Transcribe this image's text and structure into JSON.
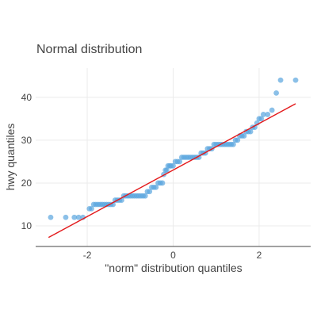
{
  "chart_data": {
    "type": "scatter",
    "title": "Normal distribution",
    "xlabel": "\"norm\" distribution quantiles",
    "ylabel": "hwy quantiles",
    "xlim": [
      -3.2,
      3.2
    ],
    "ylim": [
      5.2,
      46.8
    ],
    "x_ticks": [
      -2,
      0,
      2
    ],
    "x_tick_labels": [
      "-2",
      "0",
      "2"
    ],
    "y_ticks": [
      10,
      20,
      30,
      40
    ],
    "y_tick_labels": [
      "10",
      "20",
      "30",
      "40"
    ],
    "grid": true,
    "legend": "none",
    "colors": {
      "points": "#5aa5de",
      "line": "#e31a1c",
      "grid": "#ebebeb",
      "axis": "#444444"
    },
    "series": [
      {
        "type": "scatter",
        "points": [
          [
            -2.85,
            12
          ],
          [
            -2.5,
            12
          ],
          [
            -2.3,
            12
          ],
          [
            -2.2,
            12
          ],
          [
            -2.1,
            12
          ],
          [
            -1.95,
            14
          ],
          [
            -1.9,
            14
          ],
          [
            -1.85,
            15
          ],
          [
            -1.8,
            15
          ],
          [
            -1.75,
            15
          ],
          [
            -1.7,
            15
          ],
          [
            -1.65,
            15
          ],
          [
            -1.6,
            15
          ],
          [
            -1.55,
            15
          ],
          [
            -1.5,
            15
          ],
          [
            -1.45,
            15
          ],
          [
            -1.4,
            15
          ],
          [
            -1.35,
            16
          ],
          [
            -1.3,
            16
          ],
          [
            -1.25,
            16
          ],
          [
            -1.2,
            16
          ],
          [
            -1.15,
            17
          ],
          [
            -1.1,
            17
          ],
          [
            -1.05,
            17
          ],
          [
            -1.0,
            17
          ],
          [
            -0.95,
            17
          ],
          [
            -0.9,
            17
          ],
          [
            -0.85,
            17
          ],
          [
            -0.8,
            17
          ],
          [
            -0.75,
            17
          ],
          [
            -0.7,
            17
          ],
          [
            -0.65,
            17
          ],
          [
            -0.6,
            18
          ],
          [
            -0.55,
            18
          ],
          [
            -0.5,
            19
          ],
          [
            -0.45,
            19
          ],
          [
            -0.4,
            19
          ],
          [
            -0.35,
            20
          ],
          [
            -0.3,
            20
          ],
          [
            -0.25,
            20
          ],
          [
            -0.22,
            22
          ],
          [
            -0.18,
            23
          ],
          [
            -0.15,
            23
          ],
          [
            -0.12,
            24
          ],
          [
            -0.08,
            24
          ],
          [
            -0.05,
            24
          ],
          [
            0.0,
            24
          ],
          [
            0.05,
            25
          ],
          [
            0.1,
            25
          ],
          [
            0.15,
            25
          ],
          [
            0.2,
            26
          ],
          [
            0.25,
            26
          ],
          [
            0.3,
            26
          ],
          [
            0.35,
            26
          ],
          [
            0.4,
            26
          ],
          [
            0.45,
            26
          ],
          [
            0.5,
            26
          ],
          [
            0.55,
            26
          ],
          [
            0.6,
            26
          ],
          [
            0.65,
            27
          ],
          [
            0.7,
            27
          ],
          [
            0.75,
            27
          ],
          [
            0.8,
            28
          ],
          [
            0.85,
            28
          ],
          [
            0.9,
            28
          ],
          [
            0.95,
            29
          ],
          [
            1.0,
            29
          ],
          [
            1.05,
            29
          ],
          [
            1.1,
            29
          ],
          [
            1.15,
            29
          ],
          [
            1.2,
            29
          ],
          [
            1.25,
            29
          ],
          [
            1.3,
            29
          ],
          [
            1.35,
            29
          ],
          [
            1.4,
            29
          ],
          [
            1.45,
            30
          ],
          [
            1.5,
            30
          ],
          [
            1.55,
            31
          ],
          [
            1.6,
            31
          ],
          [
            1.65,
            31
          ],
          [
            1.7,
            32
          ],
          [
            1.75,
            32
          ],
          [
            1.8,
            32
          ],
          [
            1.85,
            33
          ],
          [
            1.9,
            33
          ],
          [
            1.95,
            34
          ],
          [
            2.0,
            35
          ],
          [
            2.05,
            35
          ],
          [
            2.1,
            36
          ],
          [
            2.2,
            36
          ],
          [
            2.3,
            37
          ],
          [
            2.4,
            41
          ],
          [
            2.5,
            44
          ],
          [
            2.85,
            44
          ]
        ]
      },
      {
        "type": "line",
        "points": [
          [
            -2.9,
            7.3
          ],
          [
            2.85,
            38.5
          ]
        ]
      }
    ]
  }
}
